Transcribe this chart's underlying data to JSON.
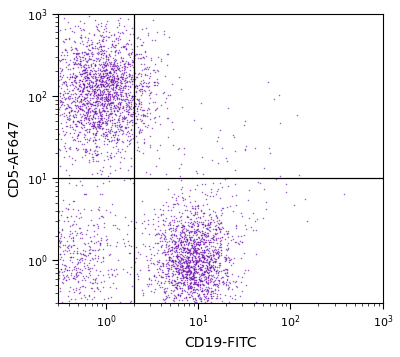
{
  "title": "",
  "xlabel": "CD19-FITC",
  "ylabel": "CD5-AF647",
  "xlim": [
    0.3,
    1000
  ],
  "ylim": [
    0.3,
    1000
  ],
  "dot_color": "#6A0DAD",
  "dot_alpha": 0.65,
  "dot_size": 1.2,
  "gate_x": 2.0,
  "gate_y": 10.0,
  "seed": 42,
  "clusters": [
    {
      "name": "upper_left_T",
      "n": 2200,
      "x_center_log": -0.05,
      "x_std_log": 0.28,
      "y_center_log": 2.05,
      "y_std_log": 0.38
    },
    {
      "name": "lower_right_B",
      "n": 1800,
      "x_center_log": 0.95,
      "x_std_log": 0.22,
      "y_center_log": 0.0,
      "y_std_log": 0.32
    },
    {
      "name": "lower_left_neg",
      "n": 600,
      "x_center_log": -0.35,
      "x_std_log": 0.28,
      "y_center_log": -0.05,
      "y_std_log": 0.42
    },
    {
      "name": "upper_right_sparse",
      "n": 25,
      "x_center_log": 1.4,
      "x_std_log": 0.4,
      "y_center_log": 1.7,
      "y_std_log": 0.4
    },
    {
      "name": "lower_right_tail",
      "n": 80,
      "x_center_log": 1.2,
      "x_std_log": 0.5,
      "y_center_log": 0.8,
      "y_std_log": 0.4
    }
  ]
}
